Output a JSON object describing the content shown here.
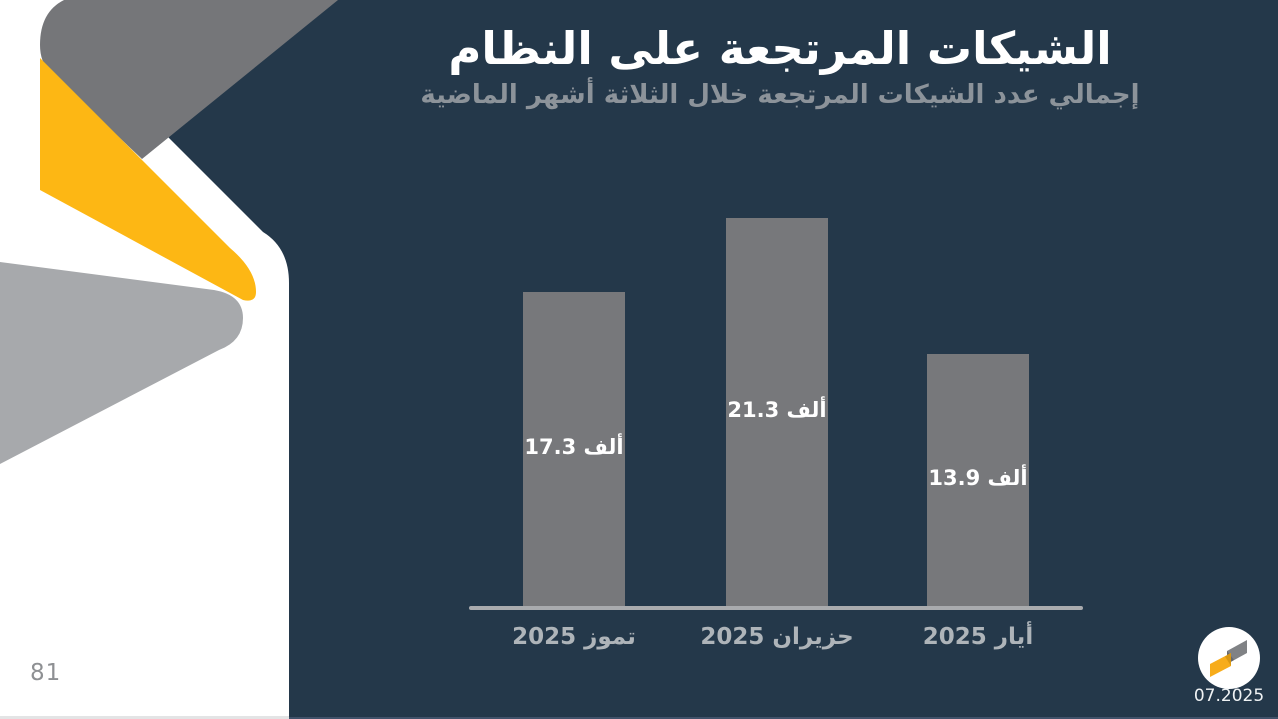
{
  "slide": {
    "page_number": "81",
    "footer_date": "07.2025"
  },
  "header": {
    "title": "الشيكات المرتجعة على النظام",
    "subtitle": "إجمالي عدد الشيكات المرتجعة خلال الثلاثة أشهر الماضية"
  },
  "chart_data": {
    "type": "bar",
    "title": "الشيكات المرتجعة على النظام",
    "subtitle": "إجمالي عدد الشيكات المرتجعة خلال الثلاثة أشهر الماضية",
    "categories": [
      "تموز 2025",
      "حزيران 2025",
      "أيار 2025"
    ],
    "values": [
      17.3,
      21.3,
      13.9
    ],
    "data_labels": [
      "17.3 ألف",
      "21.3 ألف",
      "13.9 ألف"
    ],
    "unit_word": "ألف",
    "xlabel": "",
    "ylabel": "",
    "ylim": [
      0,
      23.4
    ],
    "grid": false,
    "legend": false,
    "category_order": "right-to-left (oldest month on the right)"
  },
  "theme": {
    "panel-navy": "#24384A",
    "ribbon-yellow": "#FDB714",
    "ribbon-dark-gray": "#757679",
    "ribbon-light-gray": "#A7A9AC",
    "bar-color": "#77787B",
    "axis-color": "#A9ABAE",
    "cat-color": "#AEB4B9",
    "bar-label-color": "#FFFFFF",
    "title-color": "#FFFFFF",
    "subtitle-color": "#8C939A",
    "page-num-color": "#8E9093",
    "footer-date-color": "#EFF2F4",
    "logo-gray": "#808285",
    "logo-gray-dark": "#67686B",
    "logo-yellow": "#F7AC1B",
    "logo-yellow-dark": "#D99712",
    "edge-left": "#E3E4E5",
    "edge-right": "#41526A"
  }
}
